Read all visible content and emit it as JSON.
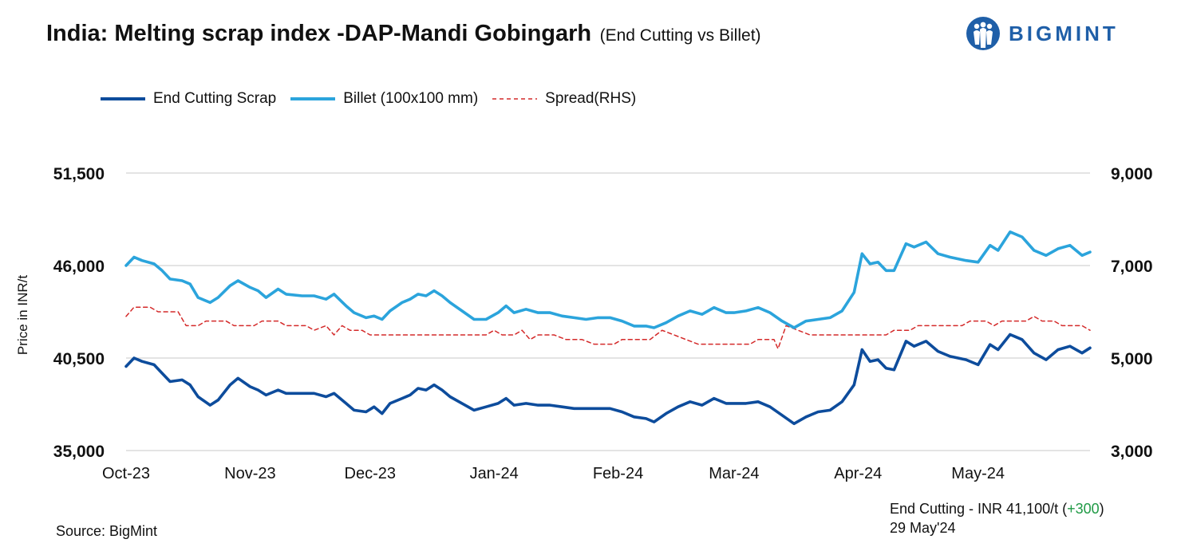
{
  "header": {
    "title": "India: Melting scrap index -DAP-Mandi Gobingarh",
    "subtitle": "(End Cutting vs Billet)",
    "logo_text": "BIGMINT"
  },
  "legend": {
    "items": [
      {
        "label": "End Cutting Scrap",
        "color": "#0d4c9c",
        "style": "solid"
      },
      {
        "label": "Billet (100x100 mm)",
        "color": "#2ba4dc",
        "style": "solid"
      },
      {
        "label": "Spread(RHS)",
        "color": "#d42a2a",
        "style": "dashed"
      }
    ]
  },
  "footer": {
    "source": "Source: BigMint",
    "note_prefix": "End Cutting - INR 41,100/t (",
    "note_delta": "+300",
    "note_suffix": ")",
    "note_date": "29 May'24"
  },
  "colors": {
    "scrap": "#0d4c9c",
    "billet": "#2ba4dc",
    "spread": "#d42a2a",
    "grid": "#c8c8c8",
    "delta_positive": "#1f9a45"
  },
  "chart_data": {
    "type": "line",
    "title": "India: Melting scrap index -DAP-Mandi Gobingarh",
    "subtitle": "(End Cutting vs Billet)",
    "ylabel": "Price in INR/t",
    "ylim": [
      35000,
      51500
    ],
    "y_ticks": [
      "51,500",
      "46,000",
      "40,500",
      "35,000"
    ],
    "y2lim": [
      3000,
      9000
    ],
    "y2_ticks": [
      "9,000",
      "7,000",
      "5,000",
      "3,000"
    ],
    "x_ticks": [
      "Oct-23",
      "Nov-23",
      "Dec-23",
      "Jan-24",
      "Feb-24",
      "Mar-24",
      "Apr-24",
      "May-24"
    ],
    "x_tick_dates": [
      "2023-10-01",
      "2023-11-01",
      "2023-12-01",
      "2024-01-01",
      "2024-02-01",
      "2024-03-01",
      "2024-04-01",
      "2024-05-01"
    ],
    "x_range": [
      "2023-10-01",
      "2024-05-29"
    ],
    "grid": "horizontal",
    "legend_position": "top-left",
    "series": [
      {
        "name": "End Cutting Scrap",
        "axis": "left",
        "points": [
          [
            "2023-10-01",
            40000
          ],
          [
            "2023-10-03",
            40500
          ],
          [
            "2023-10-05",
            40300
          ],
          [
            "2023-10-08",
            40100
          ],
          [
            "2023-10-10",
            39600
          ],
          [
            "2023-10-12",
            39100
          ],
          [
            "2023-10-15",
            39200
          ],
          [
            "2023-10-17",
            38900
          ],
          [
            "2023-10-19",
            38200
          ],
          [
            "2023-10-22",
            37700
          ],
          [
            "2023-10-24",
            38000
          ],
          [
            "2023-10-27",
            38900
          ],
          [
            "2023-10-29",
            39300
          ],
          [
            "2023-11-01",
            38800
          ],
          [
            "2023-11-03",
            38600
          ],
          [
            "2023-11-05",
            38300
          ],
          [
            "2023-11-08",
            38600
          ],
          [
            "2023-11-10",
            38400
          ],
          [
            "2023-11-14",
            38400
          ],
          [
            "2023-11-17",
            38400
          ],
          [
            "2023-11-20",
            38200
          ],
          [
            "2023-11-22",
            38400
          ],
          [
            "2023-11-25",
            37800
          ],
          [
            "2023-11-27",
            37400
          ],
          [
            "2023-11-30",
            37300
          ],
          [
            "2023-12-02",
            37600
          ],
          [
            "2023-12-04",
            37200
          ],
          [
            "2023-12-06",
            37800
          ],
          [
            "2023-12-09",
            38100
          ],
          [
            "2023-12-11",
            38300
          ],
          [
            "2023-12-13",
            38700
          ],
          [
            "2023-12-15",
            38600
          ],
          [
            "2023-12-17",
            38900
          ],
          [
            "2023-12-19",
            38600
          ],
          [
            "2023-12-21",
            38200
          ],
          [
            "2023-12-24",
            37800
          ],
          [
            "2023-12-27",
            37400
          ],
          [
            "2023-12-30",
            37600
          ],
          [
            "2024-01-02",
            37800
          ],
          [
            "2024-01-04",
            38100
          ],
          [
            "2024-01-06",
            37700
          ],
          [
            "2024-01-09",
            37800
          ],
          [
            "2024-01-12",
            37700
          ],
          [
            "2024-01-15",
            37700
          ],
          [
            "2024-01-18",
            37600
          ],
          [
            "2024-01-21",
            37500
          ],
          [
            "2024-01-24",
            37500
          ],
          [
            "2024-01-27",
            37500
          ],
          [
            "2024-01-30",
            37500
          ],
          [
            "2024-02-02",
            37300
          ],
          [
            "2024-02-05",
            37000
          ],
          [
            "2024-02-08",
            36900
          ],
          [
            "2024-02-10",
            36700
          ],
          [
            "2024-02-13",
            37200
          ],
          [
            "2024-02-16",
            37600
          ],
          [
            "2024-02-19",
            37900
          ],
          [
            "2024-02-22",
            37700
          ],
          [
            "2024-02-25",
            38100
          ],
          [
            "2024-02-28",
            37800
          ],
          [
            "2024-03-01",
            37800
          ],
          [
            "2024-03-04",
            37800
          ],
          [
            "2024-03-07",
            37900
          ],
          [
            "2024-03-10",
            37600
          ],
          [
            "2024-03-13",
            37100
          ],
          [
            "2024-03-16",
            36600
          ],
          [
            "2024-03-19",
            37000
          ],
          [
            "2024-03-22",
            37300
          ],
          [
            "2024-03-25",
            37400
          ],
          [
            "2024-03-28",
            37900
          ],
          [
            "2024-03-31",
            38900
          ],
          [
            "2024-04-02",
            41000
          ],
          [
            "2024-04-04",
            40300
          ],
          [
            "2024-04-06",
            40400
          ],
          [
            "2024-04-08",
            39900
          ],
          [
            "2024-04-10",
            39800
          ],
          [
            "2024-04-13",
            41500
          ],
          [
            "2024-04-15",
            41200
          ],
          [
            "2024-04-18",
            41500
          ],
          [
            "2024-04-21",
            40900
          ],
          [
            "2024-04-24",
            40600
          ],
          [
            "2024-04-28",
            40400
          ],
          [
            "2024-05-01",
            40100
          ],
          [
            "2024-05-04",
            41300
          ],
          [
            "2024-05-06",
            41000
          ],
          [
            "2024-05-09",
            41900
          ],
          [
            "2024-05-12",
            41600
          ],
          [
            "2024-05-15",
            40800
          ],
          [
            "2024-05-18",
            40400
          ],
          [
            "2024-05-21",
            41000
          ],
          [
            "2024-05-24",
            41200
          ],
          [
            "2024-05-27",
            40800
          ],
          [
            "2024-05-29",
            41100
          ]
        ]
      },
      {
        "name": "Billet (100x100 mm)",
        "axis": "left",
        "points": [
          [
            "2023-10-01",
            46000
          ],
          [
            "2023-10-03",
            46500
          ],
          [
            "2023-10-05",
            46300
          ],
          [
            "2023-10-08",
            46100
          ],
          [
            "2023-10-10",
            45700
          ],
          [
            "2023-10-12",
            45200
          ],
          [
            "2023-10-15",
            45100
          ],
          [
            "2023-10-17",
            44900
          ],
          [
            "2023-10-19",
            44100
          ],
          [
            "2023-10-22",
            43800
          ],
          [
            "2023-10-24",
            44100
          ],
          [
            "2023-10-27",
            44800
          ],
          [
            "2023-10-29",
            45100
          ],
          [
            "2023-11-01",
            44700
          ],
          [
            "2023-11-03",
            44500
          ],
          [
            "2023-11-05",
            44100
          ],
          [
            "2023-11-08",
            44600
          ],
          [
            "2023-11-10",
            44300
          ],
          [
            "2023-11-14",
            44200
          ],
          [
            "2023-11-17",
            44200
          ],
          [
            "2023-11-20",
            44000
          ],
          [
            "2023-11-22",
            44300
          ],
          [
            "2023-11-25",
            43600
          ],
          [
            "2023-11-27",
            43200
          ],
          [
            "2023-11-30",
            42900
          ],
          [
            "2023-12-02",
            43000
          ],
          [
            "2023-12-04",
            42800
          ],
          [
            "2023-12-06",
            43300
          ],
          [
            "2023-12-09",
            43800
          ],
          [
            "2023-12-11",
            44000
          ],
          [
            "2023-12-13",
            44300
          ],
          [
            "2023-12-15",
            44200
          ],
          [
            "2023-12-17",
            44500
          ],
          [
            "2023-12-19",
            44200
          ],
          [
            "2023-12-21",
            43800
          ],
          [
            "2023-12-24",
            43300
          ],
          [
            "2023-12-27",
            42800
          ],
          [
            "2023-12-30",
            42800
          ],
          [
            "2024-01-02",
            43200
          ],
          [
            "2024-01-04",
            43600
          ],
          [
            "2024-01-06",
            43200
          ],
          [
            "2024-01-09",
            43400
          ],
          [
            "2024-01-12",
            43200
          ],
          [
            "2024-01-15",
            43200
          ],
          [
            "2024-01-18",
            43000
          ],
          [
            "2024-01-21",
            42900
          ],
          [
            "2024-01-24",
            42800
          ],
          [
            "2024-01-27",
            42900
          ],
          [
            "2024-01-30",
            42900
          ],
          [
            "2024-02-02",
            42700
          ],
          [
            "2024-02-05",
            42400
          ],
          [
            "2024-02-08",
            42400
          ],
          [
            "2024-02-10",
            42300
          ],
          [
            "2024-02-13",
            42600
          ],
          [
            "2024-02-16",
            43000
          ],
          [
            "2024-02-19",
            43300
          ],
          [
            "2024-02-22",
            43100
          ],
          [
            "2024-02-25",
            43500
          ],
          [
            "2024-02-28",
            43200
          ],
          [
            "2024-03-01",
            43200
          ],
          [
            "2024-03-04",
            43300
          ],
          [
            "2024-03-07",
            43500
          ],
          [
            "2024-03-10",
            43200
          ],
          [
            "2024-03-13",
            42700
          ],
          [
            "2024-03-16",
            42300
          ],
          [
            "2024-03-19",
            42700
          ],
          [
            "2024-03-22",
            42800
          ],
          [
            "2024-03-25",
            42900
          ],
          [
            "2024-03-28",
            43300
          ],
          [
            "2024-03-31",
            44400
          ],
          [
            "2024-04-02",
            46700
          ],
          [
            "2024-04-04",
            46100
          ],
          [
            "2024-04-06",
            46200
          ],
          [
            "2024-04-08",
            45700
          ],
          [
            "2024-04-10",
            45700
          ],
          [
            "2024-04-13",
            47300
          ],
          [
            "2024-04-15",
            47100
          ],
          [
            "2024-04-18",
            47400
          ],
          [
            "2024-04-21",
            46700
          ],
          [
            "2024-04-24",
            46500
          ],
          [
            "2024-04-28",
            46300
          ],
          [
            "2024-05-01",
            46200
          ],
          [
            "2024-05-04",
            47200
          ],
          [
            "2024-05-06",
            46900
          ],
          [
            "2024-05-09",
            48000
          ],
          [
            "2024-05-12",
            47700
          ],
          [
            "2024-05-15",
            46900
          ],
          [
            "2024-05-18",
            46600
          ],
          [
            "2024-05-21",
            47000
          ],
          [
            "2024-05-24",
            47200
          ],
          [
            "2024-05-27",
            46600
          ],
          [
            "2024-05-29",
            46800
          ]
        ]
      },
      {
        "name": "Spread(RHS)",
        "axis": "right",
        "points": [
          [
            "2023-10-01",
            5900
          ],
          [
            "2023-10-03",
            6100
          ],
          [
            "2023-10-07",
            6100
          ],
          [
            "2023-10-09",
            6000
          ],
          [
            "2023-10-14",
            6000
          ],
          [
            "2023-10-16",
            5700
          ],
          [
            "2023-10-19",
            5700
          ],
          [
            "2023-10-21",
            5800
          ],
          [
            "2023-10-26",
            5800
          ],
          [
            "2023-10-28",
            5700
          ],
          [
            "2023-11-02",
            5700
          ],
          [
            "2023-11-04",
            5800
          ],
          [
            "2023-11-08",
            5800
          ],
          [
            "2023-11-10",
            5700
          ],
          [
            "2023-11-15",
            5700
          ],
          [
            "2023-11-17",
            5600
          ],
          [
            "2023-11-20",
            5700
          ],
          [
            "2023-11-22",
            5500
          ],
          [
            "2023-11-24",
            5700
          ],
          [
            "2023-11-26",
            5600
          ],
          [
            "2023-11-29",
            5600
          ],
          [
            "2023-12-01",
            5500
          ],
          [
            "2023-12-10",
            5500
          ],
          [
            "2023-12-20",
            5500
          ],
          [
            "2023-12-30",
            5500
          ],
          [
            "2024-01-01",
            5600
          ],
          [
            "2024-01-03",
            5500
          ],
          [
            "2024-01-06",
            5500
          ],
          [
            "2024-01-08",
            5600
          ],
          [
            "2024-01-10",
            5400
          ],
          [
            "2024-01-12",
            5500
          ],
          [
            "2024-01-16",
            5500
          ],
          [
            "2024-01-19",
            5400
          ],
          [
            "2024-01-23",
            5400
          ],
          [
            "2024-01-26",
            5300
          ],
          [
            "2024-01-31",
            5300
          ],
          [
            "2024-02-02",
            5400
          ],
          [
            "2024-02-09",
            5400
          ],
          [
            "2024-02-12",
            5600
          ],
          [
            "2024-02-15",
            5500
          ],
          [
            "2024-02-18",
            5400
          ],
          [
            "2024-02-21",
            5300
          ],
          [
            "2024-03-05",
            5300
          ],
          [
            "2024-03-07",
            5400
          ],
          [
            "2024-03-11",
            5400
          ],
          [
            "2024-03-12",
            5200
          ],
          [
            "2024-03-14",
            5700
          ],
          [
            "2024-03-17",
            5600
          ],
          [
            "2024-03-20",
            5500
          ],
          [
            "2024-03-26",
            5500
          ],
          [
            "2024-04-03",
            5500
          ],
          [
            "2024-04-08",
            5500
          ],
          [
            "2024-04-10",
            5600
          ],
          [
            "2024-04-14",
            5600
          ],
          [
            "2024-04-16",
            5700
          ],
          [
            "2024-04-22",
            5700
          ],
          [
            "2024-04-27",
            5700
          ],
          [
            "2024-04-29",
            5800
          ],
          [
            "2024-05-03",
            5800
          ],
          [
            "2024-05-05",
            5700
          ],
          [
            "2024-05-07",
            5800
          ],
          [
            "2024-05-13",
            5800
          ],
          [
            "2024-05-15",
            5900
          ],
          [
            "2024-05-17",
            5800
          ],
          [
            "2024-05-20",
            5800
          ],
          [
            "2024-05-22",
            5700
          ],
          [
            "2024-05-27",
            5700
          ],
          [
            "2024-05-29",
            5600
          ]
        ]
      }
    ]
  }
}
